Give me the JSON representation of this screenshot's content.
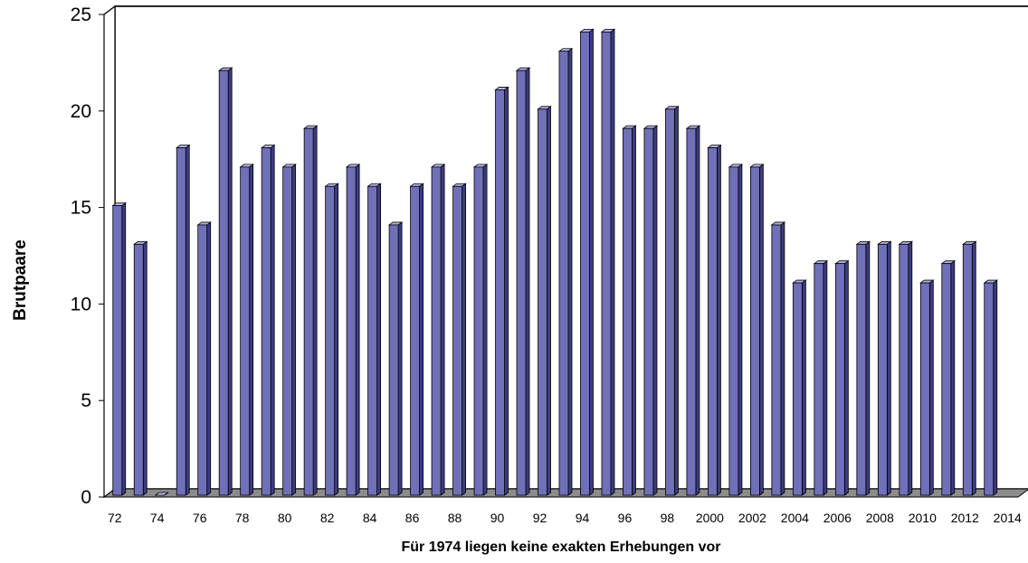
{
  "chart_data": {
    "type": "bar",
    "title": "",
    "ylabel": "Brutpaare",
    "xlabel": "Für 1974 liegen keine exakten Erhebungen vor",
    "ylim": [
      0,
      25
    ],
    "yticks": [
      0,
      5,
      10,
      15,
      20,
      25
    ],
    "grid": true,
    "legend": "none",
    "bar_color": "#7070b8",
    "categories": [
      "72",
      "73",
      "74",
      "75",
      "76",
      "77",
      "78",
      "79",
      "80",
      "81",
      "82",
      "83",
      "84",
      "85",
      "86",
      "87",
      "88",
      "89",
      "90",
      "91",
      "92",
      "93",
      "94",
      "95",
      "96",
      "97",
      "98",
      "99",
      "2000",
      "2001",
      "2002",
      "2003",
      "2004",
      "2005",
      "2006",
      "2007",
      "2008",
      "2009",
      "2010",
      "2011",
      "2012",
      "2013",
      "2014"
    ],
    "tick_labels_shown": [
      "72",
      "74",
      "76",
      "78",
      "80",
      "82",
      "84",
      "86",
      "88",
      "90",
      "92",
      "94",
      "96",
      "98",
      "2000",
      "2002",
      "2004",
      "2006",
      "2008",
      "2010",
      "2012",
      "2014"
    ],
    "values": [
      15,
      13,
      0,
      18,
      14,
      22,
      17,
      18,
      17,
      19,
      16,
      17,
      16,
      14,
      16,
      17,
      16,
      17,
      21,
      22,
      20,
      23,
      24,
      24,
      19,
      19,
      20,
      19,
      18,
      17,
      17,
      14,
      11,
      12,
      12,
      13,
      13,
      13,
      11,
      12,
      13,
      11,
      null
    ]
  }
}
